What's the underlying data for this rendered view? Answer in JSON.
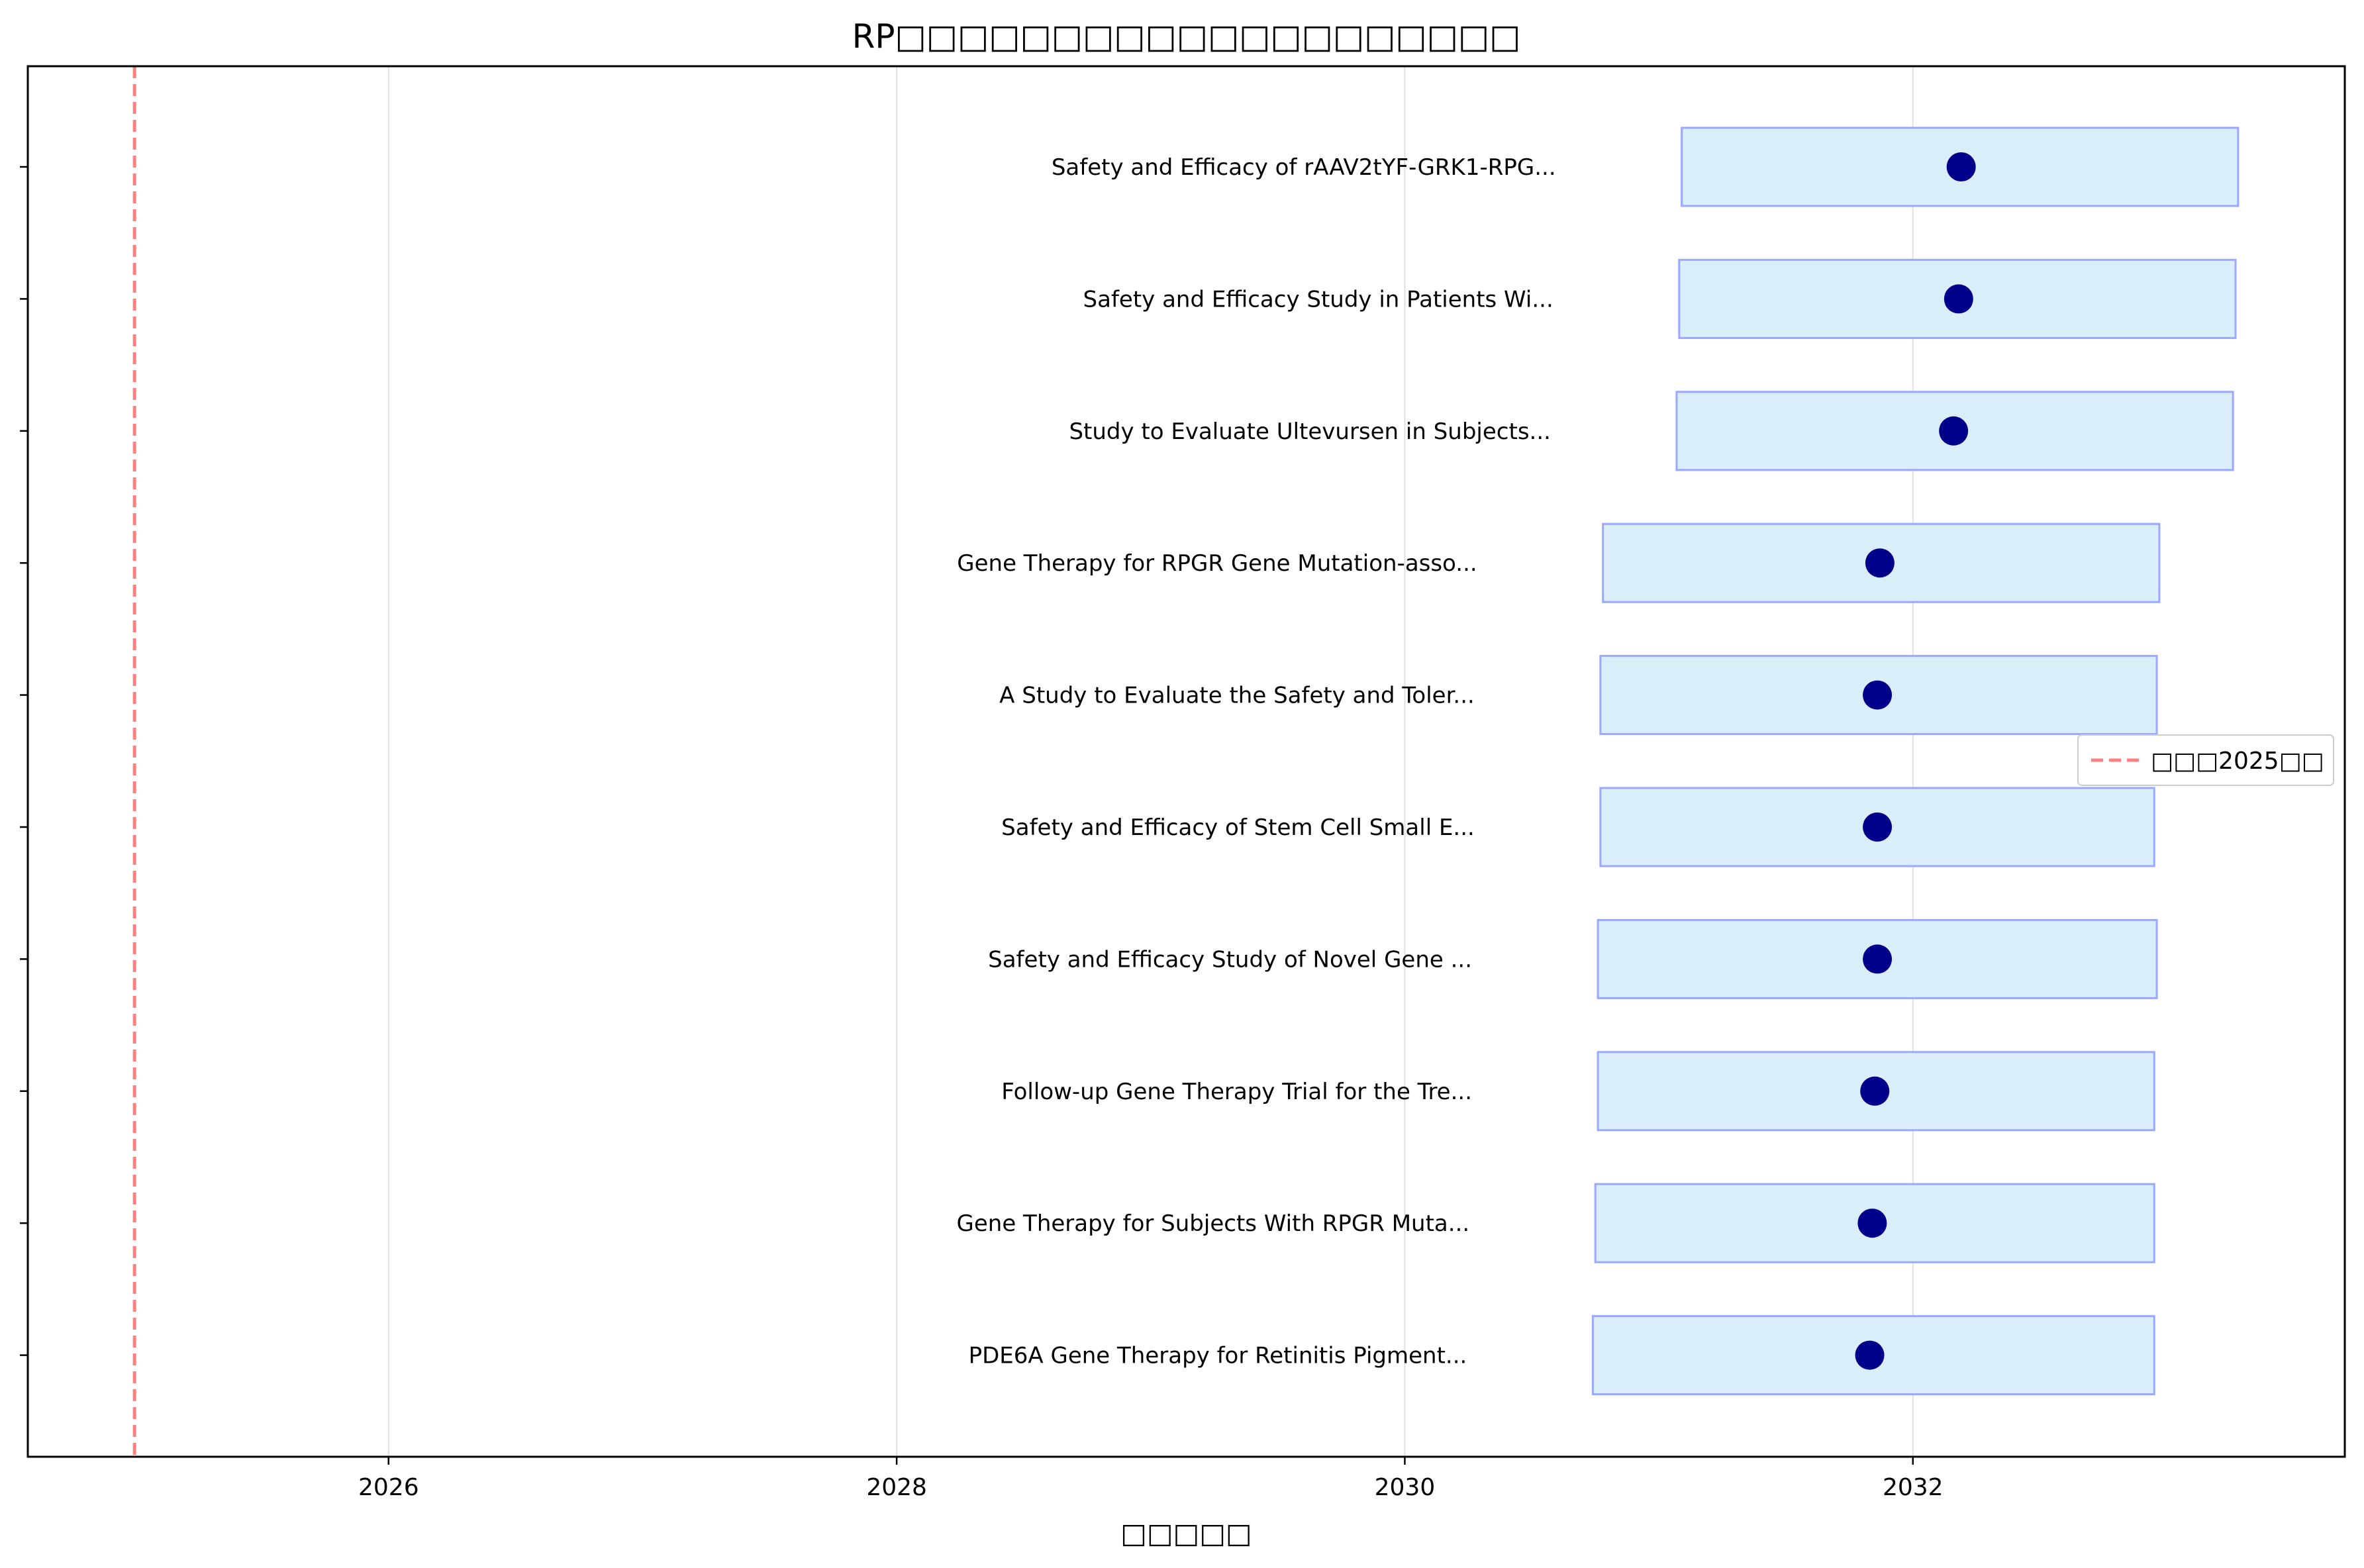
{
  "chart_data": {
    "type": "bar",
    "title": "RP□□□□□□□□□□□□□□□□□□□□",
    "xlabel": "□□□□□",
    "ylabel": "",
    "xlim": [
      2024.58,
      2033.7
    ],
    "xticks": [
      2026,
      2028,
      2030,
      2032
    ],
    "grid": "x",
    "reference_line": {
      "x": 2025.0,
      "label": "□□□2025□□",
      "color": "#ff7f7f",
      "style": "dashed"
    },
    "legend": {
      "position": "center-right"
    },
    "colors": {
      "bar_fill": "#d9eef8",
      "bar_edge": "#9aa8ff",
      "marker": "#00008b",
      "frame": "#000000",
      "grid": "#e0e0e0"
    },
    "trials": [
      {
        "label": "Safety and Efficacy of rAAV2tYF-GRK1-RPG...",
        "start": 2031.09,
        "end": 2033.28,
        "estimate": 2032.19
      },
      {
        "label": "Safety and Efficacy Study in Patients Wi...",
        "start": 2031.08,
        "end": 2033.27,
        "estimate": 2032.18
      },
      {
        "label": "Study to Evaluate Ultevursen in Subjects...",
        "start": 2031.07,
        "end": 2033.26,
        "estimate": 2032.16
      },
      {
        "label": "Gene Therapy for RPGR Gene Mutation-asso...",
        "start": 2030.78,
        "end": 2032.97,
        "estimate": 2031.87
      },
      {
        "label": "A Study to Evaluate the Safety and Toler...",
        "start": 2030.77,
        "end": 2032.96,
        "estimate": 2031.86
      },
      {
        "label": "Safety and Efficacy of Stem Cell Small E...",
        "start": 2030.77,
        "end": 2032.95,
        "estimate": 2031.86
      },
      {
        "label": "Safety and Efficacy Study of Novel Gene ...",
        "start": 2030.76,
        "end": 2032.96,
        "estimate": 2031.86
      },
      {
        "label": "Follow-up Gene Therapy Trial for the Tre...",
        "start": 2030.76,
        "end": 2032.95,
        "estimate": 2031.85
      },
      {
        "label": "Gene Therapy for Subjects With RPGR Muta...",
        "start": 2030.75,
        "end": 2032.95,
        "estimate": 2031.84
      },
      {
        "label": "PDE6A Gene Therapy for Retinitis Pigment...",
        "start": 2030.74,
        "end": 2032.95,
        "estimate": 2031.83
      }
    ]
  }
}
